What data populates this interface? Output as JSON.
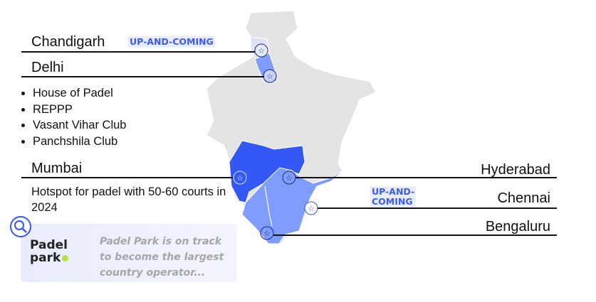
{
  "cities": {
    "chandigarh": {
      "name": "Chandigarh",
      "tag": "UP-AND-COMING"
    },
    "delhi": {
      "name": "Delhi",
      "clubs": [
        "House of Padel",
        "REPPP",
        "Vasant Vihar Club",
        "Panchshila Club"
      ]
    },
    "mumbai": {
      "name": "Mumbai",
      "note": "Hotspot for padel with 50-60 courts in 2024"
    },
    "hyderabad": {
      "name": "Hyderabad"
    },
    "chennai": {
      "name": "Chennai",
      "tag_line1": "UP-AND-",
      "tag_line2": "COMING"
    },
    "bengaluru": {
      "name": "Bengaluru"
    }
  },
  "callout": {
    "logo_text_1": "Padel",
    "logo_text_2": "park",
    "text": "Padel Park is on track to become the largest country operator...",
    "icon": "search-icon"
  },
  "colors": {
    "map_gray": "#e3e3e3",
    "strong_blue": "#3358f5",
    "light_blue": "#7f9cff",
    "pale_blue": "#dce3fb",
    "accent": "#3a5cf5"
  }
}
